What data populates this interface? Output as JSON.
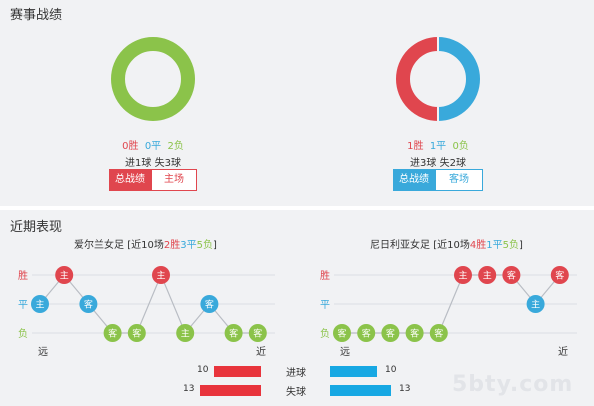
{
  "record_section": {
    "title": "赛事战绩",
    "left": {
      "ring_colors": [
        "#8bc34a"
      ],
      "ring_fraction_win": 0,
      "wins": "0胜",
      "draws": "0平",
      "losses": "2负",
      "goals": "进1球",
      "conceded": "失3球",
      "tab_total": "总战绩",
      "tab_venue": "主场"
    },
    "right": {
      "ring_fraction_win": 0.5,
      "wins": "1胜",
      "draws": "1平",
      "losses": "0负",
      "goals": "进3球",
      "conceded": "失2球",
      "tab_total": "总战绩",
      "tab_venue": "客场"
    }
  },
  "recent_section": {
    "title": "近期表现",
    "left": {
      "team_name": "爱尔兰女足",
      "summary_prefix": "[近10场",
      "wins": "2胜",
      "draws": "3平",
      "losses": "5负",
      "summary_suffix": "]",
      "y_labels": [
        "胜",
        "平",
        "负"
      ],
      "far": "远",
      "near": "近",
      "results": [
        "平",
        "胜",
        "平",
        "负",
        "负",
        "胜",
        "负",
        "平",
        "负",
        "负"
      ],
      "venues": [
        "主",
        "主",
        "客",
        "客",
        "客",
        "主",
        "主",
        "客",
        "客",
        "客"
      ]
    },
    "right": {
      "team_name": "尼日利亚女足",
      "summary_prefix": "[近10场",
      "wins": "4胜",
      "draws": "1平",
      "losses": "5负",
      "summary_suffix": "]",
      "y_labels": [
        "胜",
        "平",
        "负"
      ],
      "far": "远",
      "near": "近",
      "results": [
        "负",
        "负",
        "负",
        "负",
        "负",
        "胜",
        "胜",
        "胜",
        "平",
        "胜"
      ],
      "venues": [
        "客",
        "客",
        "客",
        "客",
        "客",
        "主",
        "主",
        "客",
        "主",
        "客"
      ]
    },
    "comparison": {
      "goals_label": "进球",
      "conceded_label": "失球",
      "left_goals": "10",
      "left_conceded": "13",
      "right_goals": "10",
      "right_conceded": "13"
    }
  },
  "colors": {
    "win": "#e0464e",
    "draw": "#39a9db",
    "loss": "#8bc34a"
  },
  "watermark": "5bty.com"
}
